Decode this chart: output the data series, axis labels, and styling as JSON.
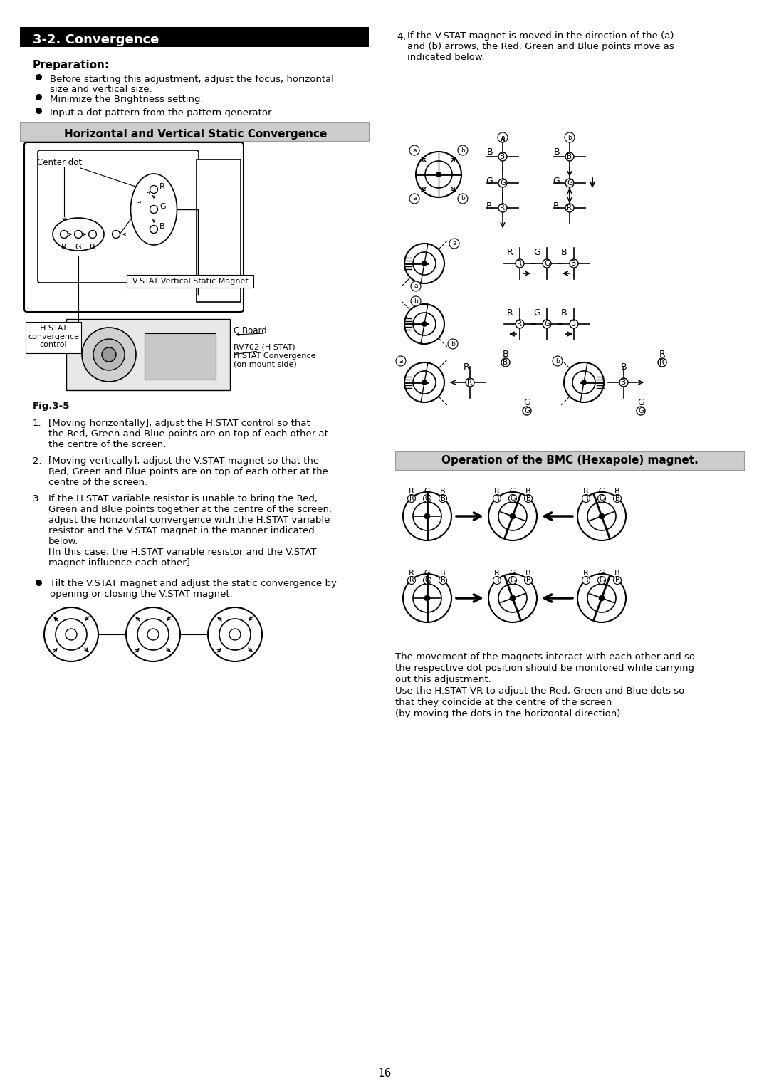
{
  "page_bg": "#ffffff",
  "header_bg": "#000000",
  "header_text": "3-2. Convergence",
  "header_text_color": "#ffffff",
  "subheader1_bg": "#cccccc",
  "subheader1_text": "Horizontal and Vertical Static Convergence",
  "subheader2_bg": "#cccccc",
  "subheader2_text": "Operation of the BMC (Hexapole) magnet.",
  "preparation_title": "Preparation:",
  "preparation_bullets": [
    "Before starting this adjustment, adjust the focus, horizontal\n    size and vertical size.",
    "Minimize the Brightness setting.",
    "Input a dot pattern from the pattern generator."
  ],
  "item4_text": "If the V.STAT magnet is moved in the direction of the (a)\nand (b) arrows, the Red, Green and Blue points move as\nindicated below.",
  "numbered_items": [
    "[Moving horizontally], adjust the H.STAT control so that\nthe Red, Green and Blue points are on top of each other at\nthe centre of the screen.",
    "[Moving vertically], adjust the V.STAT magnet so that the\nRed, Green and Blue points are on top of each other at the\ncentre of the screen.",
    "If the H.STAT variable resistor is unable to bring the Red,\nGreen and Blue points together at the centre of the screen,\nadjust the horizontal convergence with the H.STAT variable\nresistor and the V.STAT magnet in the manner indicated\nbelow.\n[In this case, the H.STAT variable resistor and the V.STAT\nmagnet influence each other]."
  ],
  "bullet_item_line1": "Tilt the V.STAT magnet and adjust the static convergence by",
  "bullet_item_line2": "opening or closing the V.STAT magnet.",
  "bmc_text_lines": [
    "The movement of the magnets interact with each other and so",
    "the respective dot position should be monitored while carrying",
    "out this adjustment.",
    "Use the H.STAT VR to adjust the Red, Green and Blue dots so",
    "that they coincide at the centre of the screen",
    "(by moving the dots in the horizontal direction)."
  ],
  "page_number": "16",
  "fig_label": "Fig.3-5"
}
